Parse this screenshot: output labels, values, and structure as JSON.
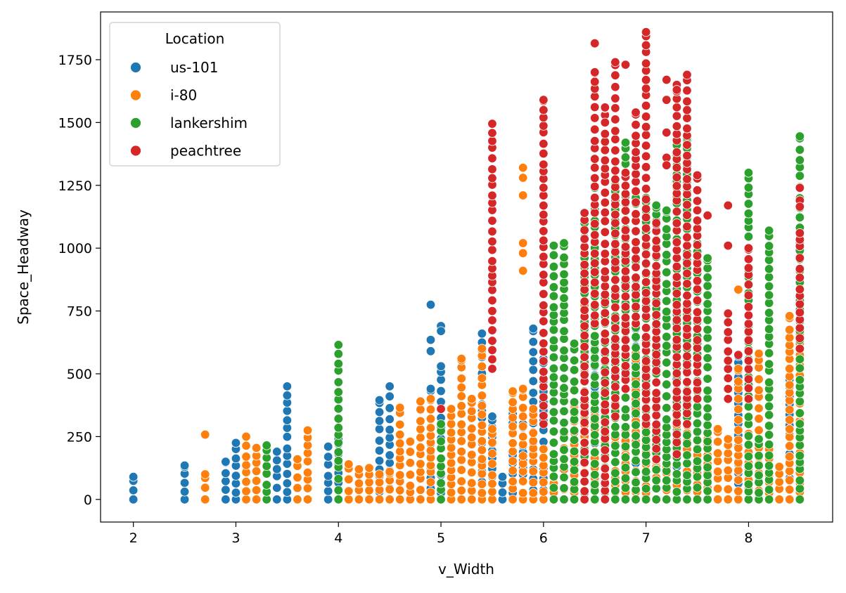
{
  "chart_data": {
    "type": "scatter",
    "xlabel": "v_Width",
    "ylabel": "Space_Headway",
    "xlim": [
      1.68,
      8.82
    ],
    "ylim": [
      -90,
      1940
    ],
    "xticks": [
      2,
      3,
      4,
      5,
      6,
      7,
      8
    ],
    "yticks": [
      0,
      250,
      500,
      750,
      1000,
      1250,
      1500,
      1750
    ],
    "grid": false,
    "legend": {
      "title": "Location",
      "placement": "top-left"
    },
    "series": [
      {
        "name": "us-101",
        "color": "#1f77b4",
        "columns": [
          [
            2.0,
            0,
            90
          ],
          [
            2.5,
            0,
            135
          ],
          [
            2.9,
            0,
            150
          ],
          [
            3.0,
            0,
            225
          ],
          [
            3.1,
            0,
            30
          ],
          [
            3.4,
            0,
            190
          ],
          [
            3.5,
            0,
            450
          ],
          [
            3.9,
            0,
            210
          ],
          [
            4.0,
            0,
            240
          ],
          [
            4.4,
            0,
            395
          ],
          [
            4.5,
            0,
            450
          ],
          [
            4.9,
            0,
            440
          ],
          [
            5.0,
            0,
            530
          ],
          [
            5.4,
            0,
            660
          ],
          [
            5.5,
            0,
            330
          ],
          [
            5.6,
            0,
            90
          ],
          [
            5.7,
            0,
            340
          ],
          [
            5.8,
            0,
            300
          ],
          [
            5.9,
            0,
            680
          ],
          [
            6.0,
            0,
            560
          ],
          [
            6.5,
            0,
            600
          ],
          [
            6.9,
            0,
            700
          ],
          [
            7.3,
            0,
            560
          ],
          [
            7.9,
            0,
            570
          ],
          [
            8.4,
            0,
            490
          ]
        ],
        "points": [
          [
            4.9,
            775
          ],
          [
            4.9,
            635
          ],
          [
            4.9,
            590
          ],
          [
            5.0,
            690
          ],
          [
            5.0,
            670
          ]
        ]
      },
      {
        "name": "i-80",
        "color": "#ff7f0e",
        "columns": [
          [
            2.7,
            0,
            100
          ],
          [
            3.1,
            0,
            250
          ],
          [
            3.2,
            0,
            205
          ],
          [
            3.6,
            0,
            160
          ],
          [
            3.7,
            0,
            275
          ],
          [
            4.1,
            0,
            140
          ],
          [
            4.2,
            0,
            120
          ],
          [
            4.3,
            0,
            125
          ],
          [
            4.4,
            0,
            100
          ],
          [
            4.5,
            0,
            110
          ],
          [
            4.6,
            0,
            365
          ],
          [
            4.7,
            0,
            230
          ],
          [
            4.8,
            0,
            390
          ],
          [
            4.9,
            0,
            400
          ],
          [
            5.1,
            0,
            360
          ],
          [
            5.2,
            0,
            560
          ],
          [
            5.3,
            0,
            400
          ],
          [
            5.4,
            0,
            600
          ],
          [
            5.5,
            0,
            280
          ],
          [
            5.7,
            0,
            430
          ],
          [
            5.8,
            0,
            440
          ],
          [
            5.9,
            0,
            360
          ],
          [
            6.0,
            0,
            200
          ],
          [
            6.1,
            0,
            150
          ],
          [
            6.2,
            0,
            260
          ],
          [
            6.3,
            0,
            380
          ],
          [
            6.4,
            0,
            840
          ],
          [
            6.5,
            0,
            330
          ],
          [
            6.6,
            0,
            440
          ],
          [
            6.7,
            0,
            460
          ],
          [
            6.8,
            0,
            280
          ],
          [
            6.9,
            0,
            580
          ],
          [
            7.0,
            0,
            550
          ],
          [
            7.1,
            0,
            150
          ],
          [
            7.2,
            0,
            130
          ],
          [
            7.3,
            0,
            380
          ],
          [
            7.4,
            0,
            560
          ],
          [
            7.5,
            0,
            350
          ],
          [
            7.6,
            0,
            240
          ],
          [
            7.7,
            0,
            280
          ],
          [
            7.8,
            0,
            240
          ],
          [
            7.9,
            0,
            520
          ],
          [
            8.0,
            0,
            480
          ],
          [
            8.1,
            0,
            580
          ],
          [
            8.2,
            0,
            200
          ],
          [
            8.3,
            0,
            130
          ],
          [
            8.4,
            0,
            730
          ],
          [
            8.5,
            0,
            660
          ]
        ],
        "points": [
          [
            2.7,
            258
          ],
          [
            5.8,
            1320
          ],
          [
            5.8,
            1280
          ],
          [
            5.8,
            1210
          ],
          [
            5.8,
            1020
          ],
          [
            5.8,
            980
          ],
          [
            5.8,
            910
          ],
          [
            7.9,
            835
          ]
        ]
      },
      {
        "name": "lankershim",
        "color": "#2ca02c",
        "columns": [
          [
            3.3,
            0,
            215
          ],
          [
            4.0,
            0,
            615
          ],
          [
            5.0,
            0,
            300
          ],
          [
            6.1,
            0,
            1010
          ],
          [
            6.2,
            0,
            1020
          ],
          [
            6.3,
            0,
            620
          ],
          [
            6.4,
            0,
            1100
          ],
          [
            6.5,
            0,
            1240
          ],
          [
            6.6,
            0,
            800
          ],
          [
            6.7,
            0,
            1250
          ],
          [
            6.8,
            0,
            1420
          ],
          [
            6.9,
            0,
            1200
          ],
          [
            7.0,
            0,
            1200
          ],
          [
            7.1,
            0,
            1170
          ],
          [
            7.2,
            0,
            1150
          ],
          [
            7.3,
            0,
            1410
          ],
          [
            7.4,
            0,
            1440
          ],
          [
            7.5,
            0,
            1020
          ],
          [
            7.6,
            0,
            960
          ],
          [
            8.0,
            0,
            1300
          ],
          [
            8.1,
            0,
            240
          ],
          [
            8.2,
            0,
            1070
          ],
          [
            8.5,
            0,
            1445
          ]
        ],
        "points": []
      },
      {
        "name": "peachtree",
        "color": "#d62728",
        "columns": [
          [
            5.5,
            520,
            1495
          ],
          [
            6.0,
            300,
            1590
          ],
          [
            6.4,
            0,
            1140
          ],
          [
            6.5,
            700,
            1700
          ],
          [
            6.6,
            0,
            1560
          ],
          [
            6.7,
            330,
            1740
          ],
          [
            6.8,
            440,
            1300
          ],
          [
            6.9,
            700,
            1540
          ],
          [
            7.0,
            300,
            1860
          ],
          [
            7.1,
            160,
            1100
          ],
          [
            7.3,
            180,
            1650
          ],
          [
            7.4,
            300,
            1690
          ],
          [
            7.5,
            400,
            1290
          ],
          [
            7.8,
            400,
            740
          ],
          [
            8.0,
            400,
            1000
          ],
          [
            8.5,
            600,
            1060
          ]
        ],
        "points": [
          [
            5.0,
            360
          ],
          [
            6.5,
            1815
          ],
          [
            6.6,
            1500
          ],
          [
            6.8,
            1730
          ],
          [
            7.2,
            1670
          ],
          [
            7.2,
            1590
          ],
          [
            7.2,
            1460
          ],
          [
            7.2,
            1360
          ],
          [
            7.2,
            1330
          ],
          [
            7.3,
            1630
          ],
          [
            7.6,
            1130
          ],
          [
            7.8,
            1170
          ],
          [
            7.8,
            1010
          ],
          [
            8.5,
            1240
          ],
          [
            8.5,
            1190
          ],
          [
            8.5,
            1165
          ],
          [
            7.9,
            575
          ]
        ]
      }
    ]
  }
}
